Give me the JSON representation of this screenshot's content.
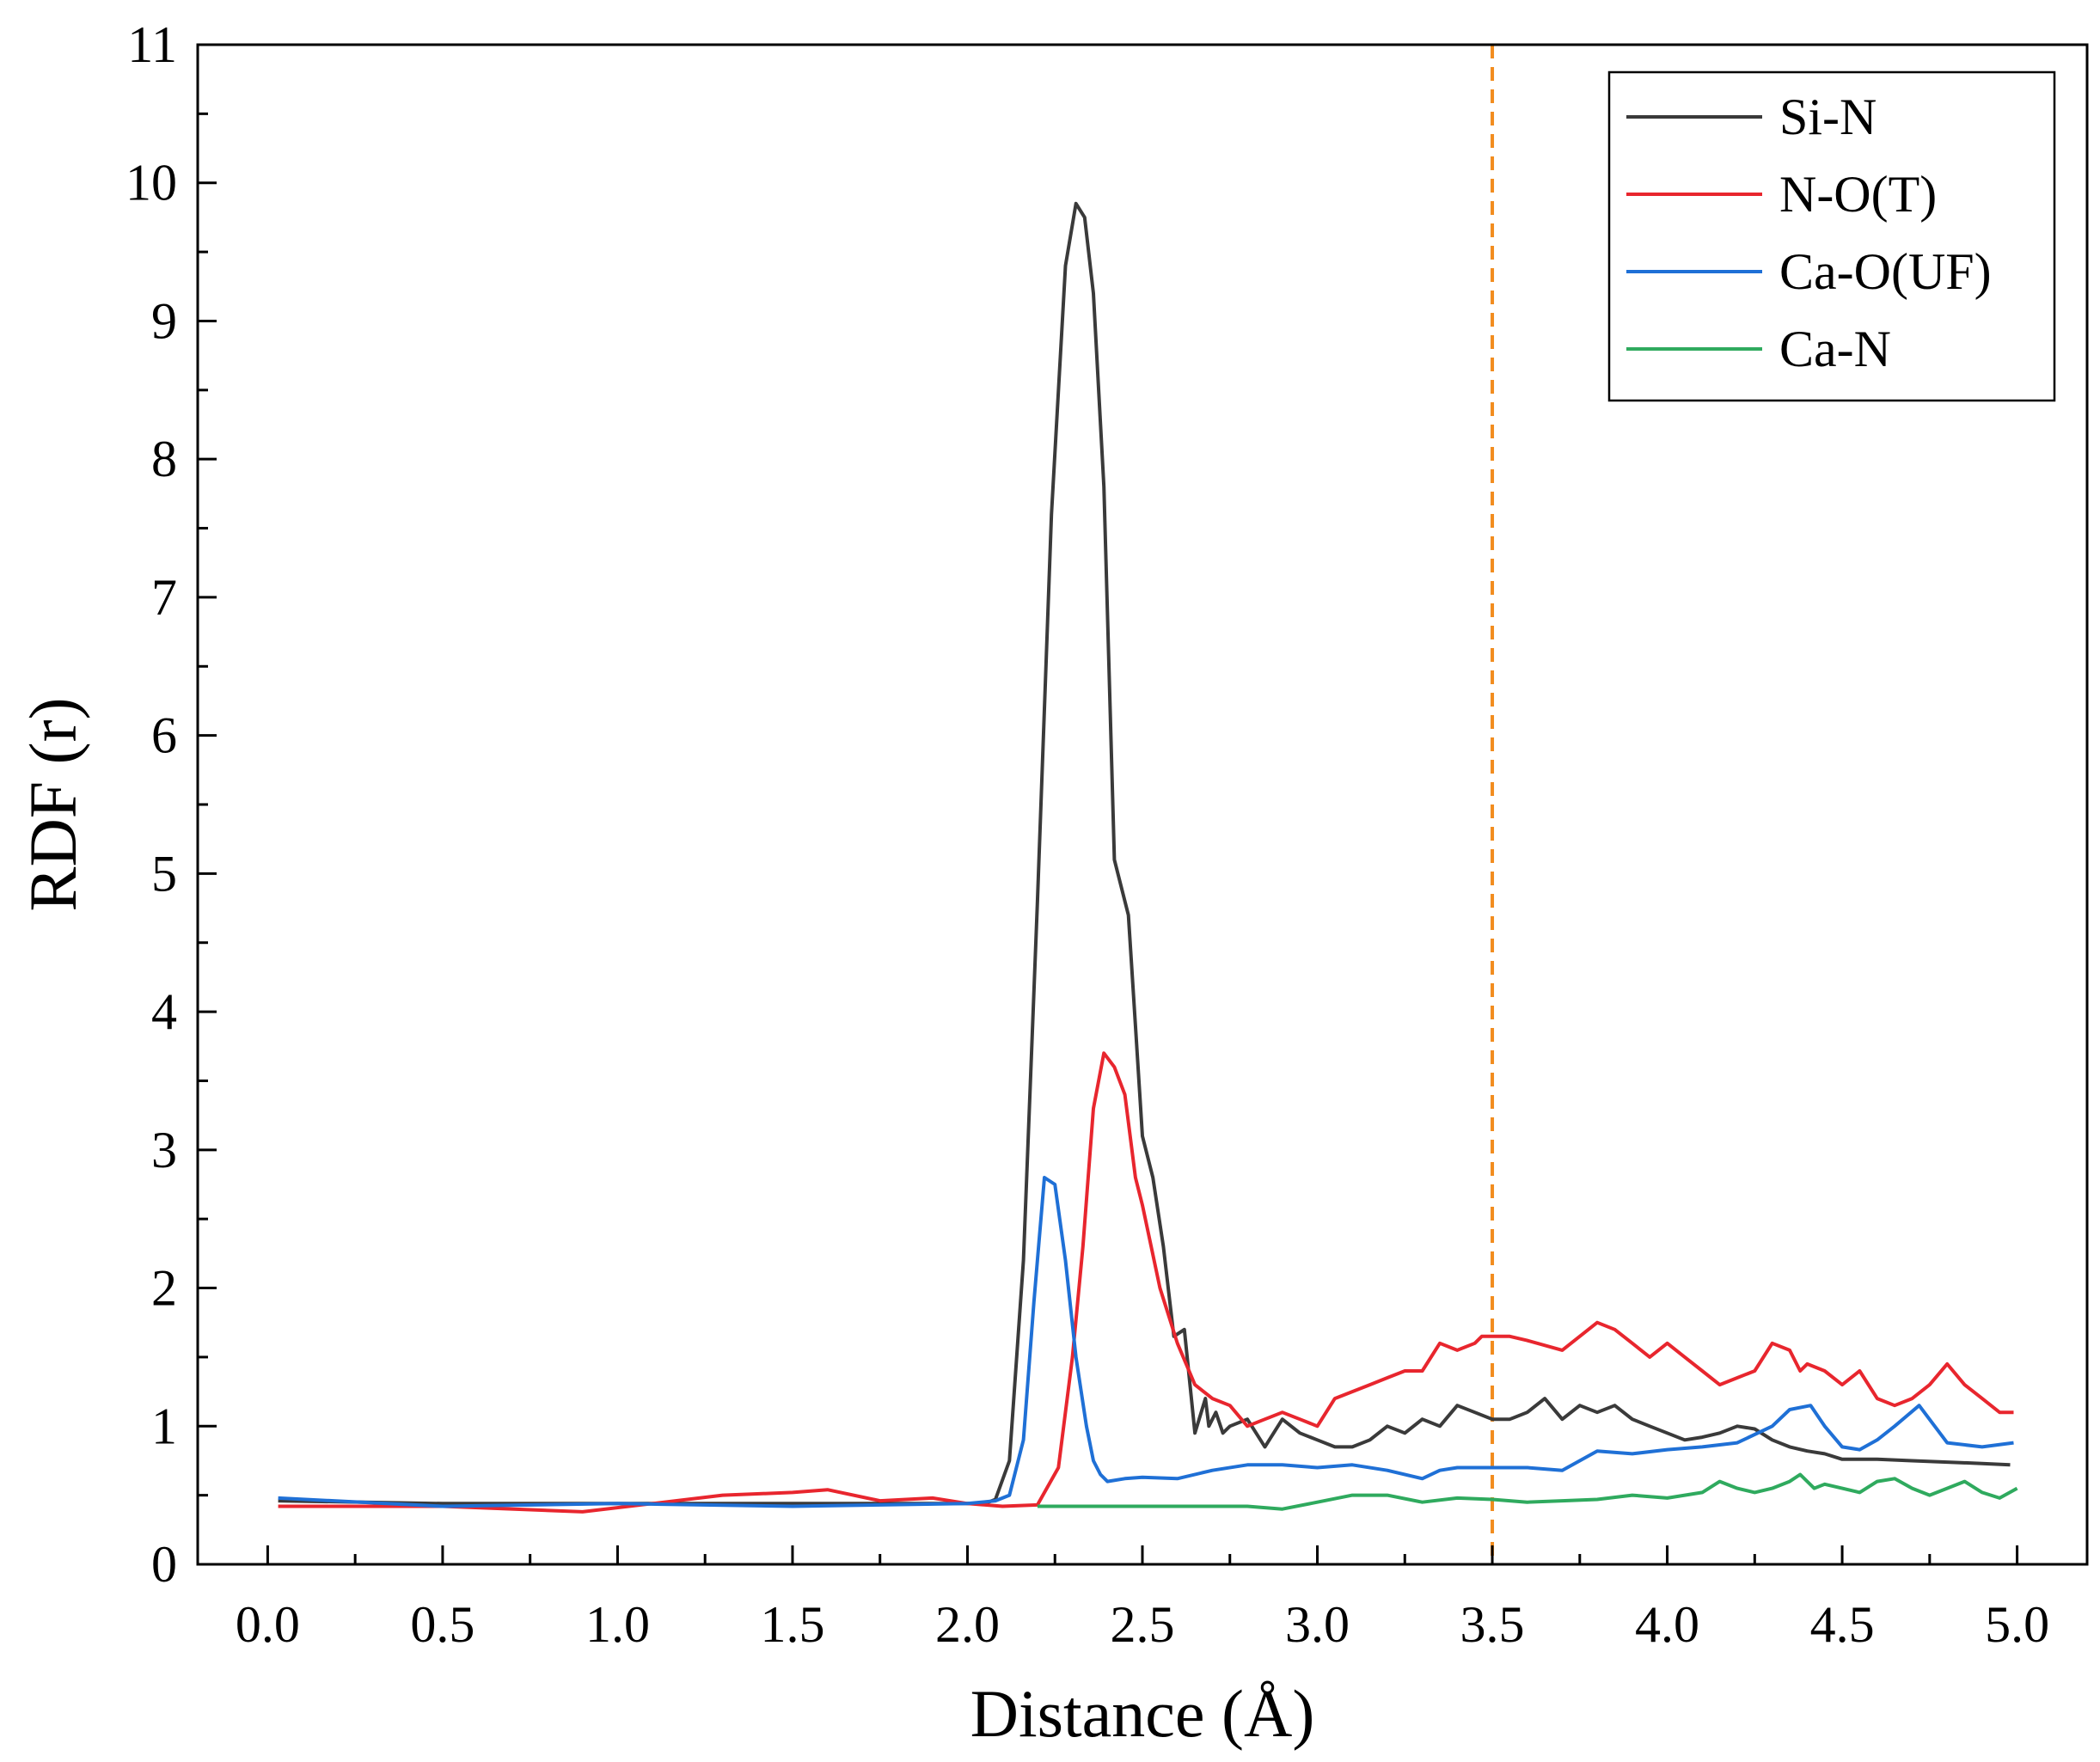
{
  "chart_data": {
    "type": "line",
    "title": "",
    "xlabel": "Distance (Å)",
    "ylabel": "RDF (r)",
    "xlim": [
      -0.2,
      5.2
    ],
    "ylim": [
      0,
      11
    ],
    "xticks": [
      0.0,
      0.5,
      1.0,
      1.5,
      2.0,
      2.5,
      3.0,
      3.5,
      4.0,
      4.5,
      5.0
    ],
    "xtick_labels": [
      "0.0",
      "0.5",
      "1.0",
      "1.5",
      "2.0",
      "2.5",
      "3.0",
      "3.5",
      "4.0",
      "4.5",
      "5.0"
    ],
    "yticks": [
      0,
      1,
      2,
      3,
      4,
      5,
      6,
      7,
      8,
      9,
      10,
      11
    ],
    "ytick_labels": [
      "0",
      "1",
      "2",
      "3",
      "4",
      "5",
      "6",
      "7",
      "8",
      "9",
      "10",
      "11"
    ],
    "legend_position": "top-right",
    "reference_line": {
      "x": 3.5,
      "color": "#f28c1e",
      "style": "dashed"
    },
    "series": [
      {
        "name": "Si-N",
        "color": "#3a3a3a",
        "x": [
          0.03,
          0.5,
          1.0,
          1.5,
          2.0,
          2.05,
          2.08,
          2.12,
          2.16,
          2.2,
          2.24,
          2.28,
          2.31,
          2.335,
          2.36,
          2.39,
          2.42,
          2.46,
          2.48,
          2.5,
          2.53,
          2.56,
          2.59,
          2.62,
          2.65,
          2.68,
          2.69,
          2.71,
          2.73,
          2.75,
          2.8,
          2.85,
          2.9,
          2.95,
          3.0,
          3.05,
          3.1,
          3.15,
          3.2,
          3.25,
          3.3,
          3.35,
          3.4,
          3.45,
          3.5,
          3.55,
          3.6,
          3.65,
          3.7,
          3.75,
          3.8,
          3.85,
          3.9,
          3.95,
          4.0,
          4.05,
          4.1,
          4.15,
          4.2,
          4.25,
          4.3,
          4.35,
          4.4,
          4.45,
          4.5,
          4.6,
          4.7,
          4.8,
          4.9,
          4.98
        ],
        "values": [
          0.46,
          0.44,
          0.44,
          0.44,
          0.44,
          0.44,
          0.47,
          0.75,
          2.2,
          4.8,
          7.6,
          9.4,
          9.85,
          9.75,
          9.2,
          7.8,
          5.1,
          4.7,
          3.9,
          3.1,
          2.8,
          2.3,
          1.65,
          1.7,
          0.95,
          1.2,
          1.0,
          1.1,
          0.95,
          1.0,
          1.05,
          0.85,
          1.05,
          0.95,
          0.9,
          0.85,
          0.85,
          0.9,
          1.0,
          0.95,
          1.05,
          1.0,
          1.15,
          1.1,
          1.05,
          1.05,
          1.1,
          1.2,
          1.05,
          1.15,
          1.1,
          1.15,
          1.05,
          1.0,
          0.95,
          0.9,
          0.92,
          0.95,
          1.0,
          0.98,
          0.9,
          0.85,
          0.82,
          0.8,
          0.76,
          0.76,
          0.75,
          0.74,
          0.73,
          0.72
        ]
      },
      {
        "name": "N-O(T)",
        "color": "#e8262e",
        "x": [
          0.03,
          0.5,
          0.9,
          1.1,
          1.3,
          1.5,
          1.6,
          1.75,
          1.9,
          2.0,
          2.1,
          2.2,
          2.26,
          2.3,
          2.33,
          2.36,
          2.39,
          2.42,
          2.45,
          2.48,
          2.5,
          2.55,
          2.6,
          2.65,
          2.7,
          2.75,
          2.8,
          2.85,
          2.9,
          2.95,
          3.0,
          3.05,
          3.1,
          3.15,
          3.2,
          3.25,
          3.3,
          3.35,
          3.4,
          3.45,
          3.47,
          3.5,
          3.55,
          3.6,
          3.7,
          3.8,
          3.85,
          3.9,
          3.95,
          4.0,
          4.05,
          4.1,
          4.15,
          4.2,
          4.25,
          4.3,
          4.35,
          4.38,
          4.4,
          4.45,
          4.5,
          4.55,
          4.6,
          4.65,
          4.7,
          4.75,
          4.8,
          4.85,
          4.9,
          4.95,
          4.99
        ],
        "values": [
          0.42,
          0.42,
          0.38,
          0.44,
          0.5,
          0.52,
          0.54,
          0.46,
          0.48,
          0.44,
          0.42,
          0.43,
          0.7,
          1.5,
          2.3,
          3.3,
          3.7,
          3.6,
          3.4,
          2.8,
          2.6,
          2.0,
          1.6,
          1.3,
          1.2,
          1.15,
          1.0,
          1.05,
          1.1,
          1.05,
          1.0,
          1.2,
          1.25,
          1.3,
          1.35,
          1.4,
          1.4,
          1.6,
          1.55,
          1.6,
          1.65,
          1.65,
          1.65,
          1.62,
          1.55,
          1.75,
          1.7,
          1.6,
          1.5,
          1.6,
          1.5,
          1.4,
          1.3,
          1.35,
          1.4,
          1.6,
          1.55,
          1.4,
          1.45,
          1.4,
          1.3,
          1.4,
          1.2,
          1.15,
          1.2,
          1.3,
          1.45,
          1.3,
          1.2,
          1.1,
          1.1
        ]
      },
      {
        "name": "Ca-O(UF)",
        "color": "#1f70d6",
        "x": [
          0.03,
          0.5,
          1.0,
          1.5,
          2.0,
          2.08,
          2.12,
          2.16,
          2.19,
          2.22,
          2.25,
          2.28,
          2.31,
          2.34,
          2.36,
          2.38,
          2.4,
          2.45,
          2.5,
          2.6,
          2.7,
          2.8,
          2.9,
          3.0,
          3.1,
          3.2,
          3.3,
          3.35,
          3.4,
          3.5,
          3.6,
          3.7,
          3.8,
          3.9,
          4.0,
          4.1,
          4.2,
          4.3,
          4.35,
          4.41,
          4.45,
          4.5,
          4.55,
          4.6,
          4.65,
          4.72,
          4.8,
          4.9,
          4.99
        ],
        "values": [
          0.48,
          0.42,
          0.44,
          0.42,
          0.44,
          0.46,
          0.5,
          0.9,
          1.9,
          2.8,
          2.75,
          2.2,
          1.5,
          1.0,
          0.75,
          0.65,
          0.6,
          0.62,
          0.63,
          0.62,
          0.68,
          0.72,
          0.72,
          0.7,
          0.72,
          0.68,
          0.62,
          0.68,
          0.7,
          0.7,
          0.7,
          0.68,
          0.82,
          0.8,
          0.83,
          0.85,
          0.88,
          1.0,
          1.12,
          1.15,
          1.0,
          0.85,
          0.83,
          0.9,
          1.0,
          1.15,
          0.88,
          0.85,
          0.88
        ]
      },
      {
        "name": "Ca-N",
        "color": "#2faa5e",
        "x": [
          2.2,
          2.4,
          2.6,
          2.8,
          2.9,
          3.0,
          3.1,
          3.2,
          3.3,
          3.4,
          3.5,
          3.6,
          3.7,
          3.8,
          3.9,
          4.0,
          4.1,
          4.15,
          4.2,
          4.25,
          4.3,
          4.35,
          4.38,
          4.42,
          4.45,
          4.5,
          4.55,
          4.6,
          4.65,
          4.7,
          4.75,
          4.8,
          4.85,
          4.9,
          4.95,
          5.0
        ],
        "values": [
          0.42,
          0.42,
          0.42,
          0.42,
          0.4,
          0.45,
          0.5,
          0.5,
          0.45,
          0.48,
          0.47,
          0.45,
          0.46,
          0.47,
          0.5,
          0.48,
          0.52,
          0.6,
          0.55,
          0.52,
          0.55,
          0.6,
          0.65,
          0.55,
          0.58,
          0.55,
          0.52,
          0.6,
          0.62,
          0.55,
          0.5,
          0.55,
          0.6,
          0.52,
          0.48,
          0.55
        ]
      }
    ]
  }
}
